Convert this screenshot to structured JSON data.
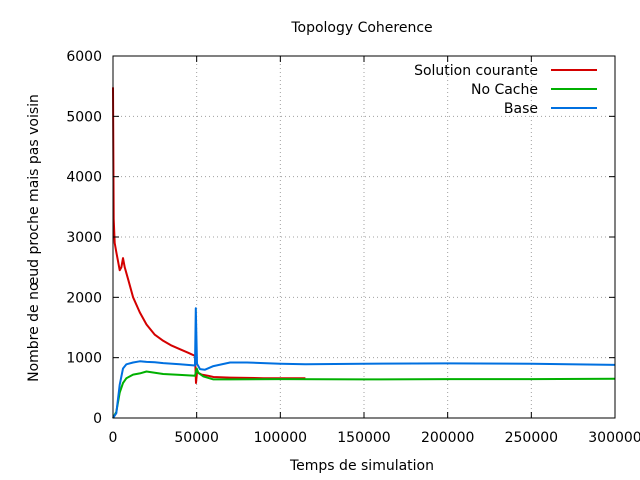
{
  "chart_data": {
    "type": "line",
    "title": "Topology Coherence",
    "xlabel": "Temps de simulation",
    "ylabel": "Nombre de nœud proche mais pas voisin",
    "xlim": [
      0,
      300000
    ],
    "ylim": [
      0,
      6000
    ],
    "x_ticks": [
      "0",
      "50000",
      "100000",
      "150000",
      "200000",
      "250000",
      "300000"
    ],
    "y_ticks": [
      "0",
      "1000",
      "2000",
      "3000",
      "4000",
      "5000",
      "6000"
    ],
    "grid": true,
    "legend_position": "top-right",
    "series": [
      {
        "name": "Solution courante",
        "color": "#d40000",
        "points": [
          [
            0,
            5480
          ],
          [
            400,
            3300
          ],
          [
            1000,
            2900
          ],
          [
            2000,
            2750
          ],
          [
            3000,
            2600
          ],
          [
            4000,
            2450
          ],
          [
            5000,
            2500
          ],
          [
            6000,
            2650
          ],
          [
            7000,
            2500
          ],
          [
            9000,
            2300
          ],
          [
            12000,
            2000
          ],
          [
            16000,
            1750
          ],
          [
            20000,
            1550
          ],
          [
            25000,
            1380
          ],
          [
            30000,
            1280
          ],
          [
            35000,
            1200
          ],
          [
            40000,
            1140
          ],
          [
            45000,
            1080
          ],
          [
            49000,
            1030
          ],
          [
            49600,
            580
          ],
          [
            50200,
            760
          ],
          [
            53000,
            720
          ],
          [
            57000,
            700
          ],
          [
            60000,
            680
          ],
          [
            70000,
            670
          ],
          [
            90000,
            660
          ],
          [
            115000,
            660
          ]
        ]
      },
      {
        "name": "No Cache",
        "color": "#00b000",
        "points": [
          [
            0,
            0
          ],
          [
            2000,
            100
          ],
          [
            4000,
            420
          ],
          [
            6000,
            580
          ],
          [
            8000,
            660
          ],
          [
            12000,
            720
          ],
          [
            16000,
            740
          ],
          [
            20000,
            770
          ],
          [
            25000,
            750
          ],
          [
            30000,
            730
          ],
          [
            40000,
            715
          ],
          [
            49000,
            700
          ],
          [
            50000,
            820
          ],
          [
            51000,
            750
          ],
          [
            54000,
            690
          ],
          [
            60000,
            640
          ],
          [
            70000,
            640
          ],
          [
            100000,
            645
          ],
          [
            150000,
            640
          ],
          [
            200000,
            645
          ],
          [
            250000,
            645
          ],
          [
            300000,
            650
          ]
        ]
      },
      {
        "name": "Base",
        "color": "#0070e0",
        "points": [
          [
            0,
            0
          ],
          [
            2000,
            80
          ],
          [
            4000,
            550
          ],
          [
            6000,
            820
          ],
          [
            8000,
            890
          ],
          [
            12000,
            920
          ],
          [
            16000,
            940
          ],
          [
            20000,
            930
          ],
          [
            25000,
            925
          ],
          [
            30000,
            910
          ],
          [
            40000,
            890
          ],
          [
            49000,
            870
          ],
          [
            49500,
            1820
          ],
          [
            50200,
            900
          ],
          [
            52000,
            810
          ],
          [
            55000,
            800
          ],
          [
            60000,
            860
          ],
          [
            70000,
            920
          ],
          [
            80000,
            920
          ],
          [
            90000,
            910
          ],
          [
            100000,
            900
          ],
          [
            115000,
            890
          ],
          [
            150000,
            900
          ],
          [
            200000,
            905
          ],
          [
            250000,
            900
          ],
          [
            300000,
            880
          ]
        ]
      }
    ]
  }
}
